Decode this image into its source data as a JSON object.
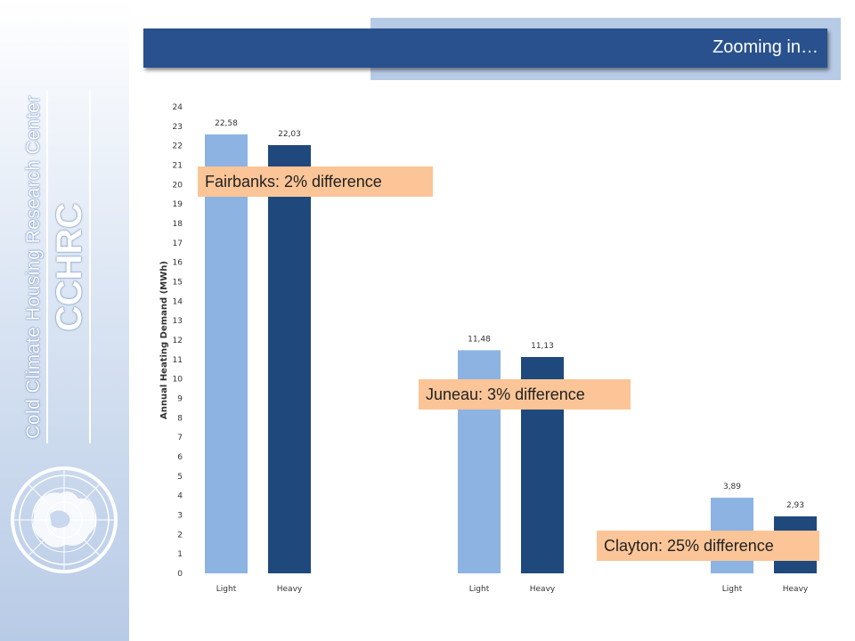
{
  "slide": {
    "title": "Zooming in…",
    "sidebar_org": "Cold Climate Housing Research Center",
    "sidebar_abbr": "CCHRC"
  },
  "colors": {
    "light_bar": "#8db3e2",
    "heavy_bar": "#1f497d",
    "title_bar": "#28518e",
    "callout": "#fbc597"
  },
  "callouts": {
    "fairbanks": "Fairbanks: 2% difference",
    "juneau": "Juneau: 3% difference",
    "clayton": "Clayton: 25% difference"
  },
  "chart_data": {
    "type": "bar",
    "categories": [
      "Light",
      "Heavy",
      "Light",
      "Heavy",
      "Light",
      "Heavy"
    ],
    "groups": [
      "Fairbanks",
      "Fairbanks",
      "Juneau",
      "Juneau",
      "Clayton",
      "Clayton"
    ],
    "values": [
      22.58,
      22.03,
      11.48,
      11.13,
      3.89,
      2.93
    ],
    "data_labels": [
      "22,58",
      "22,03",
      "11,48",
      "11,13",
      "3,89",
      "2,93"
    ],
    "bar_kinds": [
      "light",
      "heavy",
      "light",
      "heavy",
      "light",
      "heavy"
    ],
    "title": "",
    "xlabel": "",
    "ylabel": "Annual Heating Demand (MWh)",
    "ylim": [
      0,
      24
    ],
    "yticks": [
      0,
      1,
      2,
      3,
      4,
      5,
      6,
      7,
      8,
      9,
      10,
      11,
      12,
      13,
      14,
      15,
      16,
      17,
      18,
      19,
      20,
      21,
      22,
      23,
      24
    ],
    "grid": false,
    "legend": "none"
  }
}
